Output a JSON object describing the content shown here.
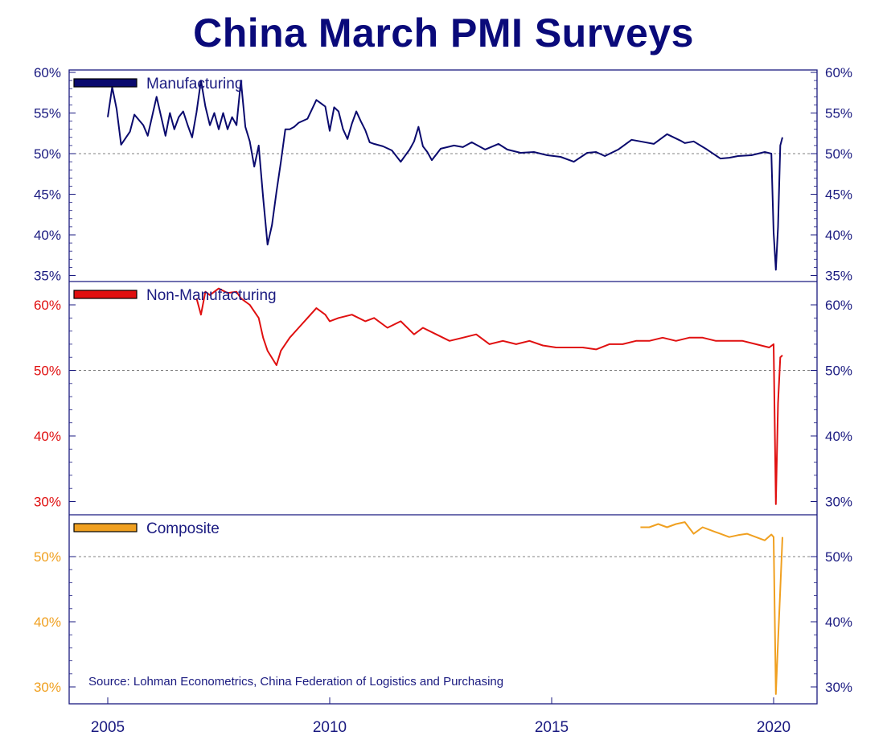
{
  "title": "China March PMI Surveys",
  "source": "Source: Lohman Econometrics, China Federation of Logistics and Purchasing",
  "colors": {
    "frame": "#1a1a80",
    "manufacturing": "#0a0a6e",
    "non_manufacturing": "#e01010",
    "composite": "#f0a020",
    "reference_line": "#808080"
  },
  "chart_data": [
    {
      "type": "line",
      "panel": "top",
      "xlim": [
        2004.0,
        2020.8
      ],
      "ylim": [
        35,
        60
      ],
      "x_ticks": [
        2005,
        2010,
        2015,
        2020
      ],
      "y_ticks": [
        35,
        40,
        45,
        50,
        55,
        60
      ],
      "y_tick_labels": [
        "35%",
        "40%",
        "45%",
        "50%",
        "55%",
        "60%"
      ],
      "reference_line": 50,
      "legend": "top-left",
      "series": [
        {
          "name": "Manufacturing",
          "color": "#0a0a6e",
          "x": [
            2005.0,
            2005.1,
            2005.2,
            2005.3,
            2005.5,
            2005.6,
            2005.8,
            2005.9,
            2006.1,
            2006.3,
            2006.4,
            2006.5,
            2006.6,
            2006.7,
            2006.8,
            2006.9,
            2007.0,
            2007.1,
            2007.2,
            2007.3,
            2007.4,
            2007.5,
            2007.6,
            2007.7,
            2007.8,
            2007.9,
            2008.0,
            2008.1,
            2008.2,
            2008.3,
            2008.4,
            2008.5,
            2008.6,
            2008.7,
            2008.8,
            2008.9,
            2009.0,
            2009.1,
            2009.2,
            2009.3,
            2009.5,
            2009.7,
            2009.9,
            2010.0,
            2010.1,
            2010.2,
            2010.3,
            2010.4,
            2010.5,
            2010.6,
            2010.7,
            2010.8,
            2010.9,
            2011.0,
            2011.2,
            2011.4,
            2011.6,
            2011.8,
            2011.9,
            2012.0,
            2012.1,
            2012.2,
            2012.3,
            2012.5,
            2012.8,
            2013.0,
            2013.2,
            2013.5,
            2013.8,
            2014.0,
            2014.3,
            2014.6,
            2014.9,
            2015.2,
            2015.5,
            2015.8,
            2016.0,
            2016.2,
            2016.5,
            2016.8,
            2017.0,
            2017.3,
            2017.6,
            2017.9,
            2018.0,
            2018.2,
            2018.5,
            2018.8,
            2019.0,
            2019.2,
            2019.5,
            2019.8,
            2019.95,
            2020.0,
            2020.05,
            2020.1,
            2020.15,
            2020.2
          ],
          "y": [
            54.5,
            58.2,
            55.5,
            51.1,
            52.7,
            54.8,
            53.5,
            52.2,
            57.0,
            52.2,
            55.0,
            53.0,
            54.5,
            55.2,
            53.5,
            52.0,
            55.1,
            59.0,
            55.8,
            53.5,
            55.0,
            53.0,
            55.0,
            53.0,
            54.5,
            53.5,
            59.0,
            53.3,
            51.5,
            48.4,
            51.0,
            44.6,
            38.8,
            41.2,
            45.3,
            49.0,
            53.0,
            53.0,
            53.3,
            53.8,
            54.3,
            56.6,
            55.8,
            52.8,
            55.7,
            55.2,
            53.0,
            51.8,
            53.7,
            55.2,
            54.0,
            52.9,
            51.4,
            51.2,
            50.9,
            50.4,
            49.0,
            50.5,
            51.5,
            53.3,
            50.9,
            50.2,
            49.2,
            50.6,
            51.0,
            50.8,
            51.4,
            50.5,
            51.2,
            50.5,
            50.1,
            50.2,
            49.8,
            49.6,
            49.0,
            50.1,
            50.2,
            49.7,
            50.5,
            51.7,
            51.5,
            51.2,
            52.4,
            51.6,
            51.3,
            51.5,
            50.5,
            49.4,
            49.5,
            49.7,
            49.8,
            50.2,
            50.0,
            40.3,
            35.7,
            41.0,
            51.0,
            52.0
          ]
        }
      ]
    },
    {
      "type": "line",
      "panel": "middle",
      "xlim": [
        2004.0,
        2020.8
      ],
      "ylim": [
        28,
        64
      ],
      "y_ticks": [
        30,
        40,
        50,
        60
      ],
      "y_tick_labels": [
        "30%",
        "40%",
        "50%",
        "60%"
      ],
      "reference_line": 50,
      "legend": "top-left",
      "series": [
        {
          "name": "Non-Manufacturing",
          "color": "#e01010",
          "x": [
            2007.0,
            2007.1,
            2007.2,
            2007.3,
            2007.5,
            2007.7,
            2007.9,
            2008.0,
            2008.2,
            2008.4,
            2008.5,
            2008.6,
            2008.8,
            2008.9,
            2009.1,
            2009.3,
            2009.5,
            2009.7,
            2009.9,
            2010.0,
            2010.2,
            2010.5,
            2010.8,
            2011.0,
            2011.3,
            2011.6,
            2011.9,
            2012.1,
            2012.4,
            2012.7,
            2013.0,
            2013.3,
            2013.6,
            2013.9,
            2014.2,
            2014.5,
            2014.8,
            2015.1,
            2015.4,
            2015.7,
            2016.0,
            2016.3,
            2016.6,
            2016.9,
            2017.2,
            2017.5,
            2017.8,
            2018.1,
            2018.4,
            2018.7,
            2019.0,
            2019.3,
            2019.6,
            2019.9,
            2020.0,
            2020.05,
            2020.1,
            2020.15,
            2020.2
          ],
          "y": [
            61.0,
            58.5,
            62.0,
            61.5,
            62.5,
            61.8,
            62.0,
            61.0,
            60.0,
            58.0,
            55.0,
            53.0,
            50.8,
            53.0,
            55.0,
            56.5,
            58.0,
            59.5,
            58.5,
            57.5,
            58.0,
            58.5,
            57.5,
            58.0,
            56.5,
            57.5,
            55.5,
            56.5,
            55.5,
            54.5,
            55.0,
            55.5,
            54.0,
            54.5,
            54.0,
            54.5,
            53.8,
            53.5,
            53.5,
            53.5,
            53.2,
            54.0,
            54.0,
            54.5,
            54.5,
            55.0,
            54.5,
            55.0,
            55.0,
            54.5,
            54.5,
            54.5,
            54.0,
            53.5,
            54.0,
            29.6,
            45.0,
            52.0,
            52.3
          ]
        }
      ]
    },
    {
      "type": "line",
      "panel": "bottom",
      "xlim": [
        2004.0,
        2020.8
      ],
      "ylim": [
        27.5,
        56.5
      ],
      "y_ticks": [
        30,
        40,
        50
      ],
      "y_tick_labels": [
        "30%",
        "40%",
        "50%"
      ],
      "reference_line": 50,
      "legend": "top-left",
      "series": [
        {
          "name": "Composite",
          "color": "#f0a020",
          "x": [
            2017.0,
            2017.2,
            2017.4,
            2017.6,
            2017.8,
            2018.0,
            2018.2,
            2018.4,
            2018.6,
            2018.8,
            2019.0,
            2019.2,
            2019.4,
            2019.6,
            2019.8,
            2019.95,
            2020.0,
            2020.05,
            2020.1,
            2020.15,
            2020.2
          ],
          "y": [
            54.5,
            54.5,
            55.0,
            54.5,
            55.0,
            55.3,
            53.5,
            54.5,
            54.0,
            53.5,
            53.0,
            53.3,
            53.5,
            53.0,
            52.5,
            53.4,
            53.0,
            28.9,
            37.0,
            45.0,
            53.0
          ]
        }
      ]
    }
  ]
}
